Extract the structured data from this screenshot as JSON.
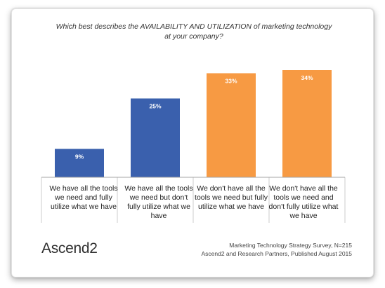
{
  "chart_data": {
    "type": "bar",
    "title": "Which best describes the AVAILABILITY AND UTILIZATION of marketing technology at your company?",
    "categories": [
      "We have all the tools we need and fully utilize what we have",
      "We have all the tools we need but don't fully utilize what we have",
      "We don't have all the tools we need but fully utilize what we have",
      "We don't have all the tools we need and don't fully utilize what we have"
    ],
    "values": [
      9,
      25,
      33,
      34
    ],
    "value_labels": [
      "9%",
      "25%",
      "33%",
      "34%"
    ],
    "bar_colors": [
      "#3a60ad",
      "#3a60ad",
      "#f79a43",
      "#f79a43"
    ],
    "ylim": [
      0,
      40
    ],
    "grid": false,
    "legend": "none",
    "xlabel": "",
    "ylabel": ""
  },
  "footer": {
    "logo": "Ascend2",
    "source_line1": "Marketing Technology Strategy Survey, N=215",
    "source_line2": "Ascend2 and Research Partners, Published August 2015"
  }
}
